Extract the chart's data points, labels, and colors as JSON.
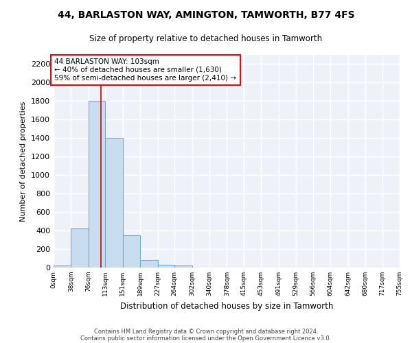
{
  "title1": "44, BARLASTON WAY, AMINGTON, TAMWORTH, B77 4FS",
  "title2": "Size of property relative to detached houses in Tamworth",
  "xlabel": "Distribution of detached houses by size in Tamworth",
  "ylabel": "Number of detached properties",
  "bar_edges": [
    0,
    38,
    76,
    113,
    151,
    189,
    227,
    264,
    302,
    340,
    378,
    415,
    453,
    491,
    529,
    566,
    604,
    642,
    680,
    717,
    755
  ],
  "bar_heights": [
    20,
    420,
    1800,
    1400,
    350,
    80,
    30,
    20,
    0,
    0,
    0,
    0,
    0,
    0,
    0,
    0,
    0,
    0,
    0,
    0
  ],
  "bar_color": "#c9ddf0",
  "bar_edgecolor": "#6aaed6",
  "background_color": "#eef2f8",
  "grid_color": "#ffffff",
  "vline_x": 103,
  "vline_color": "#cc0000",
  "ylim": [
    0,
    2300
  ],
  "yticks": [
    0,
    200,
    400,
    600,
    800,
    1000,
    1200,
    1400,
    1600,
    1800,
    2000,
    2200
  ],
  "annotation_line1": "44 BARLASTON WAY: 103sqm",
  "annotation_line2": "← 40% of detached houses are smaller (1,630)",
  "annotation_line3": "59% of semi-detached houses are larger (2,410) →",
  "footer1": "Contains HM Land Registry data © Crown copyright and database right 2024.",
  "footer2": "Contains public sector information licensed under the Open Government Licence v3.0.",
  "tick_labels": [
    "0sqm",
    "38sqm",
    "76sqm",
    "113sqm",
    "151sqm",
    "189sqm",
    "227sqm",
    "264sqm",
    "302sqm",
    "340sqm",
    "378sqm",
    "415sqm",
    "453sqm",
    "491sqm",
    "529sqm",
    "566sqm",
    "604sqm",
    "642sqm",
    "680sqm",
    "717sqm",
    "755sqm"
  ]
}
